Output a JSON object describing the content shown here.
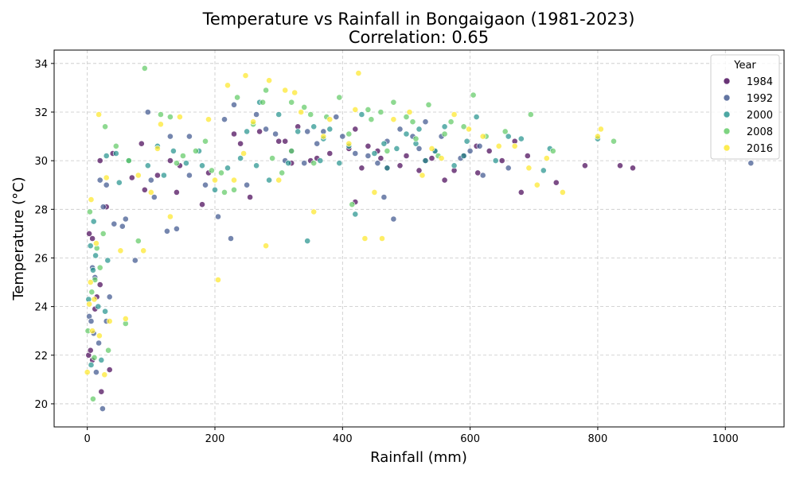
{
  "chart_data": {
    "type": "scatter",
    "title": "Temperature vs Rainfall in Bongaigaon (1981-2023)",
    "subtitle": "Correlation: 0.65",
    "xlabel": "Rainfall (mm)",
    "ylabel": "Temperature (°C)",
    "xlim": [
      -52,
      1092
    ],
    "ylim": [
      19.05,
      34.55
    ],
    "xticks": [
      0,
      200,
      400,
      600,
      800,
      1000
    ],
    "yticks": [
      20,
      22,
      24,
      26,
      28,
      30,
      32,
      34
    ],
    "grid": true,
    "legend": {
      "title": "Year",
      "placement": "top-right",
      "entries": [
        "1984",
        "1992",
        "2000",
        "2008",
        "2016"
      ]
    },
    "colormap": "viridis",
    "colors": {
      "1984": "#440154",
      "1992": "#3b528b",
      "2000": "#21918c",
      "2008": "#5ec962",
      "2016": "#fde725"
    },
    "series": [
      {
        "name": "1984",
        "points": [
          [
            2,
            22.0
          ],
          [
            5,
            22.2
          ],
          [
            8,
            21.8
          ],
          [
            12,
            23.9
          ],
          [
            15,
            24.4
          ],
          [
            20,
            24.9
          ],
          [
            8,
            26.8
          ],
          [
            3,
            27.0
          ],
          [
            22,
            20.5
          ],
          [
            35,
            21.4
          ],
          [
            20,
            30.0
          ],
          [
            40,
            30.3
          ],
          [
            30,
            28.1
          ],
          [
            70,
            29.3
          ],
          [
            90,
            28.8
          ],
          [
            110,
            29.4
          ],
          [
            130,
            30.0
          ],
          [
            140,
            28.7
          ],
          [
            145,
            29.8
          ],
          [
            180,
            28.2
          ],
          [
            190,
            29.5
          ],
          [
            230,
            31.1
          ],
          [
            240,
            30.7
          ],
          [
            255,
            28.5
          ],
          [
            270,
            31.2
          ],
          [
            300,
            30.8
          ],
          [
            310,
            30.8
          ],
          [
            320,
            29.9
          ],
          [
            330,
            31.4
          ],
          [
            350,
            30.0
          ],
          [
            360,
            30.1
          ],
          [
            380,
            30.3
          ],
          [
            410,
            30.5
          ],
          [
            420,
            31.3
          ],
          [
            430,
            29.7
          ],
          [
            440,
            30.6
          ],
          [
            455,
            30.4
          ],
          [
            460,
            30.1
          ],
          [
            470,
            29.7
          ],
          [
            490,
            29.8
          ],
          [
            500,
            30.2
          ],
          [
            520,
            29.6
          ],
          [
            530,
            30.0
          ],
          [
            540,
            30.1
          ],
          [
            560,
            29.2
          ],
          [
            575,
            29.6
          ],
          [
            590,
            30.2
          ],
          [
            610,
            30.6
          ],
          [
            612,
            29.5
          ],
          [
            630,
            30.4
          ],
          [
            650,
            30.0
          ],
          [
            670,
            30.8
          ],
          [
            680,
            28.7
          ],
          [
            690,
            30.2
          ],
          [
            735,
            29.1
          ],
          [
            780,
            29.8
          ],
          [
            835,
            29.8
          ],
          [
            855,
            29.7
          ],
          [
            420,
            28.3
          ],
          [
            85,
            30.7
          ]
        ]
      },
      {
        "name": "1992",
        "points": [
          [
            3,
            23.6
          ],
          [
            6,
            23.4
          ],
          [
            10,
            22.9
          ],
          [
            14,
            21.3
          ],
          [
            18,
            22.5
          ],
          [
            24,
            19.8
          ],
          [
            30,
            23.4
          ],
          [
            35,
            24.4
          ],
          [
            12,
            25.2
          ],
          [
            8,
            25.6
          ],
          [
            25,
            28.1
          ],
          [
            30,
            29.0
          ],
          [
            42,
            27.4
          ],
          [
            55,
            27.3
          ],
          [
            60,
            27.6
          ],
          [
            75,
            25.9
          ],
          [
            95,
            32.0
          ],
          [
            100,
            29.2
          ],
          [
            105,
            28.5
          ],
          [
            125,
            27.1
          ],
          [
            140,
            27.2
          ],
          [
            160,
            29.4
          ],
          [
            185,
            29.0
          ],
          [
            205,
            27.7
          ],
          [
            215,
            31.7
          ],
          [
            225,
            26.8
          ],
          [
            250,
            29.0
          ],
          [
            265,
            31.9
          ],
          [
            280,
            31.3
          ],
          [
            295,
            31.1
          ],
          [
            310,
            30.0
          ],
          [
            320,
            30.4
          ],
          [
            340,
            29.9
          ],
          [
            345,
            31.2
          ],
          [
            360,
            30.7
          ],
          [
            370,
            31.2
          ],
          [
            390,
            31.8
          ],
          [
            400,
            31.0
          ],
          [
            420,
            30.3
          ],
          [
            440,
            30.2
          ],
          [
            455,
            29.9
          ],
          [
            465,
            28.5
          ],
          [
            470,
            30.8
          ],
          [
            480,
            27.6
          ],
          [
            490,
            31.3
          ],
          [
            510,
            31.0
          ],
          [
            520,
            30.5
          ],
          [
            530,
            31.6
          ],
          [
            545,
            30.4
          ],
          [
            555,
            31.0
          ],
          [
            585,
            30.1
          ],
          [
            600,
            30.4
          ],
          [
            615,
            30.6
          ],
          [
            620,
            29.4
          ],
          [
            660,
            29.7
          ],
          [
            1040,
            29.9
          ],
          [
            20,
            29.2
          ],
          [
            130,
            31.0
          ],
          [
            230,
            32.3
          ],
          [
            160,
            31.0
          ]
        ]
      },
      {
        "name": "2000",
        "points": [
          [
            2,
            24.3
          ],
          [
            5,
            26.5
          ],
          [
            9,
            25.5
          ],
          [
            13,
            26.1
          ],
          [
            17,
            24.0
          ],
          [
            22,
            21.8
          ],
          [
            28,
            23.8
          ],
          [
            32,
            25.9
          ],
          [
            10,
            27.5
          ],
          [
            6,
            21.6
          ],
          [
            30,
            30.2
          ],
          [
            50,
            29.1
          ],
          [
            65,
            30.0
          ],
          [
            95,
            29.8
          ],
          [
            110,
            30.6
          ],
          [
            135,
            30.4
          ],
          [
            155,
            29.9
          ],
          [
            180,
            29.8
          ],
          [
            200,
            28.8
          ],
          [
            220,
            29.7
          ],
          [
            240,
            30.1
          ],
          [
            265,
            29.8
          ],
          [
            285,
            29.2
          ],
          [
            300,
            31.9
          ],
          [
            315,
            29.9
          ],
          [
            330,
            31.2
          ],
          [
            345,
            26.7
          ],
          [
            355,
            31.4
          ],
          [
            370,
            30.9
          ],
          [
            395,
            29.9
          ],
          [
            410,
            30.6
          ],
          [
            430,
            31.9
          ],
          [
            450,
            30.3
          ],
          [
            465,
            30.7
          ],
          [
            485,
            30.5
          ],
          [
            500,
            31.1
          ],
          [
            515,
            30.7
          ],
          [
            530,
            30.0
          ],
          [
            545,
            30.4
          ],
          [
            560,
            31.4
          ],
          [
            575,
            29.8
          ],
          [
            590,
            30.2
          ],
          [
            610,
            31.8
          ],
          [
            640,
            30.0
          ],
          [
            660,
            31.0
          ],
          [
            680,
            30.9
          ],
          [
            715,
            29.6
          ],
          [
            725,
            30.5
          ],
          [
            800,
            30.9
          ],
          [
            420,
            27.8
          ],
          [
            175,
            30.4
          ],
          [
            270,
            32.4
          ],
          [
            380,
            31.3
          ],
          [
            520,
            31.3
          ],
          [
            45,
            30.3
          ],
          [
            120,
            29.4
          ],
          [
            250,
            31.2
          ],
          [
            470,
            29.7
          ],
          [
            595,
            30.8
          ],
          [
            365,
            30.0
          ]
        ]
      },
      {
        "name": "2008",
        "points": [
          [
            1,
            23.0
          ],
          [
            4,
            27.9
          ],
          [
            7,
            24.6
          ],
          [
            11,
            21.9
          ],
          [
            15,
            26.4
          ],
          [
            20,
            25.6
          ],
          [
            25,
            27.0
          ],
          [
            33,
            22.2
          ],
          [
            9,
            20.2
          ],
          [
            12,
            25.1
          ],
          [
            28,
            31.4
          ],
          [
            45,
            30.6
          ],
          [
            60,
            23.3
          ],
          [
            80,
            26.7
          ],
          [
            90,
            33.8
          ],
          [
            115,
            31.9
          ],
          [
            140,
            29.9
          ],
          [
            170,
            30.4
          ],
          [
            195,
            29.6
          ],
          [
            215,
            28.7
          ],
          [
            235,
            32.6
          ],
          [
            260,
            31.5
          ],
          [
            275,
            32.4
          ],
          [
            290,
            30.1
          ],
          [
            305,
            29.5
          ],
          [
            320,
            32.4
          ],
          [
            340,
            32.2
          ],
          [
            355,
            29.9
          ],
          [
            375,
            31.8
          ],
          [
            395,
            32.6
          ],
          [
            415,
            28.2
          ],
          [
            440,
            32.1
          ],
          [
            460,
            32.0
          ],
          [
            480,
            32.4
          ],
          [
            500,
            31.8
          ],
          [
            515,
            30.9
          ],
          [
            535,
            32.3
          ],
          [
            550,
            30.2
          ],
          [
            570,
            31.6
          ],
          [
            605,
            32.7
          ],
          [
            625,
            31.0
          ],
          [
            655,
            31.2
          ],
          [
            695,
            31.9
          ],
          [
            730,
            30.4
          ],
          [
            825,
            30.8
          ],
          [
            470,
            30.4
          ],
          [
            350,
            31.9
          ],
          [
            230,
            28.8
          ],
          [
            185,
            30.8
          ],
          [
            65,
            30.0
          ],
          [
            130,
            31.8
          ],
          [
            280,
            32.9
          ],
          [
            410,
            31.1
          ],
          [
            560,
            31.1
          ],
          [
            150,
            30.2
          ],
          [
            210,
            29.5
          ],
          [
            320,
            30.4
          ],
          [
            510,
            31.6
          ],
          [
            590,
            31.4
          ],
          [
            445,
            31.7
          ]
        ]
      },
      {
        "name": "2016",
        "points": [
          [
            0,
            21.3
          ],
          [
            3,
            24.1
          ],
          [
            5,
            25.0
          ],
          [
            8,
            23.0
          ],
          [
            11,
            24.3
          ],
          [
            14,
            26.6
          ],
          [
            19,
            22.8
          ],
          [
            27,
            21.2
          ],
          [
            35,
            23.4
          ],
          [
            6,
            28.4
          ],
          [
            18,
            31.9
          ],
          [
            30,
            29.3
          ],
          [
            52,
            26.3
          ],
          [
            80,
            29.4
          ],
          [
            88,
            26.3
          ],
          [
            100,
            28.7
          ],
          [
            115,
            31.5
          ],
          [
            130,
            27.7
          ],
          [
            145,
            31.8
          ],
          [
            190,
            31.7
          ],
          [
            200,
            29.2
          ],
          [
            205,
            25.1
          ],
          [
            220,
            33.1
          ],
          [
            245,
            30.3
          ],
          [
            248,
            33.5
          ],
          [
            260,
            31.6
          ],
          [
            280,
            26.5
          ],
          [
            285,
            33.3
          ],
          [
            310,
            32.9
          ],
          [
            325,
            32.8
          ],
          [
            335,
            32.0
          ],
          [
            355,
            27.9
          ],
          [
            370,
            31.0
          ],
          [
            410,
            30.7
          ],
          [
            420,
            32.1
          ],
          [
            425,
            33.6
          ],
          [
            435,
            26.8
          ],
          [
            450,
            28.7
          ],
          [
            462,
            26.8
          ],
          [
            480,
            31.7
          ],
          [
            505,
            32.0
          ],
          [
            525,
            29.4
          ],
          [
            555,
            30.1
          ],
          [
            575,
            31.9
          ],
          [
            598,
            31.3
          ],
          [
            620,
            31.0
          ],
          [
            645,
            30.6
          ],
          [
            670,
            30.6
          ],
          [
            692,
            29.7
          ],
          [
            705,
            29.0
          ],
          [
            720,
            30.1
          ],
          [
            745,
            28.7
          ],
          [
            800,
            31.0
          ],
          [
            805,
            31.3
          ],
          [
            60,
            23.5
          ],
          [
            230,
            29.2
          ],
          [
            380,
            31.7
          ],
          [
            540,
            30.5
          ],
          [
            110,
            30.5
          ],
          [
            300,
            29.2
          ]
        ]
      }
    ]
  }
}
